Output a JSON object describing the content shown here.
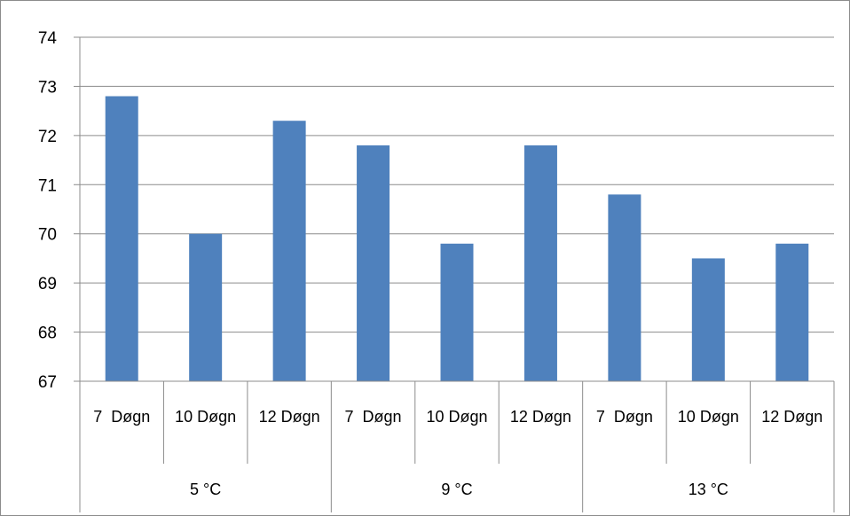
{
  "chart_data": {
    "type": "bar",
    "title": "",
    "xlabel": "",
    "ylabel": "",
    "ylim": [
      67,
      74
    ],
    "yticks": [
      67,
      68,
      69,
      70,
      71,
      72,
      73,
      74
    ],
    "grid": true,
    "legend": "none",
    "groups": [
      "5 °C",
      "9 °C",
      "13 °C"
    ],
    "categories": [
      "7  Døgn",
      "10 Døgn",
      "12 Døgn",
      "7  Døgn",
      "10 Døgn",
      "12 Døgn",
      "7  Døgn",
      "10 Døgn",
      "12 Døgn"
    ],
    "values": [
      72.8,
      70.0,
      72.3,
      71.8,
      69.8,
      71.8,
      70.8,
      69.5,
      69.8
    ],
    "bar_color": "#4f81bd",
    "grid_color": "#8c8c8c"
  }
}
